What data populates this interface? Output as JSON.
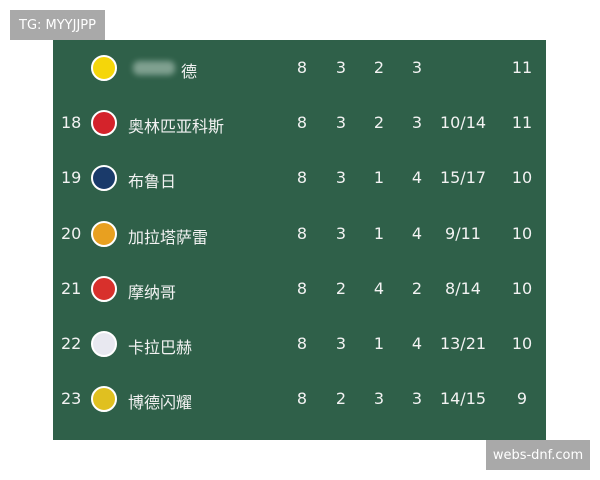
{
  "watermarks": {
    "top_left": "TG: MYYJJPP",
    "bottom_right": "webs-dnf.com"
  },
  "rows": [
    {
      "rank": "",
      "name": "德",
      "played": "8",
      "won": "3",
      "drawn": "2",
      "lost": "3",
      "goals": "",
      "points": "11",
      "logo": "bvb-crest",
      "color": "#f5d60a"
    },
    {
      "rank": "18",
      "name": "奥林匹亚科斯",
      "played": "8",
      "won": "3",
      "drawn": "2",
      "lost": "3",
      "goals": "10/14",
      "points": "11",
      "logo": "olympiacos-crest",
      "color": "#d4232b"
    },
    {
      "rank": "19",
      "name": "布鲁日",
      "played": "8",
      "won": "3",
      "drawn": "1",
      "lost": "4",
      "goals": "15/17",
      "points": "10",
      "logo": "brugge-crest",
      "color": "#1a3a6a"
    },
    {
      "rank": "20",
      "name": "加拉塔萨雷",
      "played": "8",
      "won": "3",
      "drawn": "1",
      "lost": "4",
      "goals": "9/11",
      "points": "10",
      "logo": "galatasaray-crest",
      "color": "#e8a020"
    },
    {
      "rank": "21",
      "name": "摩纳哥",
      "played": "8",
      "won": "2",
      "drawn": "4",
      "lost": "2",
      "goals": "8/14",
      "points": "10",
      "logo": "monaco-crest",
      "color": "#d8302c"
    },
    {
      "rank": "22",
      "name": "卡拉巴赫",
      "played": "8",
      "won": "3",
      "drawn": "1",
      "lost": "4",
      "goals": "13/21",
      "points": "10",
      "logo": "qarabag-crest",
      "color": "#e8e8f0"
    },
    {
      "rank": "23",
      "name": "博德闪耀",
      "played": "8",
      "won": "2",
      "drawn": "3",
      "lost": "3",
      "goals": "14/15",
      "points": "9",
      "logo": "bodo-glimt-crest",
      "color": "#e0c020"
    }
  ]
}
